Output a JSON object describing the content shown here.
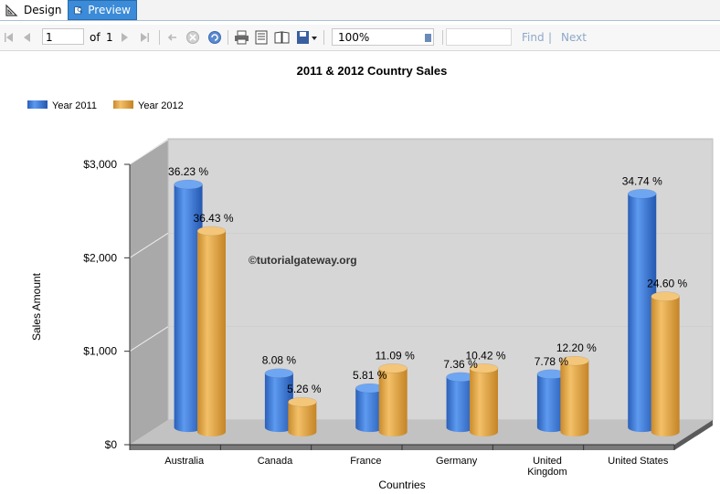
{
  "tabs": {
    "design": "Design",
    "preview": "Preview"
  },
  "toolbar": {
    "page_current": "1",
    "page_of": "of",
    "page_total": "1",
    "zoom": "100%",
    "find": "Find",
    "separator": "|",
    "next": "Next"
  },
  "chart_data": {
    "type": "bar",
    "title": "2011 & 2012 Country Sales",
    "xlabel": "Countries",
    "ylabel": "Sales Amount",
    "ylim": [
      0,
      3000
    ],
    "yticks": [
      "$0",
      "$1,000",
      "$2,000",
      "$3,000"
    ],
    "yticks_values": [
      0,
      1000,
      2000,
      3000
    ],
    "categories": [
      "Australia",
      "Canada",
      "France",
      "Germany",
      "United Kingdom",
      "United States"
    ],
    "category_lines": [
      [
        "Australia"
      ],
      [
        "Canada"
      ],
      [
        "France"
      ],
      [
        "Germany"
      ],
      [
        "United",
        "Kingdom"
      ],
      [
        "United States"
      ]
    ],
    "series": [
      {
        "name": "Year 2011",
        "color": "#3a78d8",
        "values": [
          2600,
          580,
          420,
          540,
          570,
          2500
        ],
        "labels": [
          "36.23 %",
          "8.08 %",
          "5.81 %",
          "7.36 %",
          "7.78 %",
          "34.74 %"
        ]
      },
      {
        "name": "Year 2012",
        "color": "#e6a64a",
        "values": [
          2150,
          320,
          680,
          680,
          760,
          1450
        ],
        "labels": [
          "36.43 %",
          "5.26 %",
          "11.09 %",
          "10.42 %",
          "12.20 %",
          "24.60 %"
        ]
      }
    ],
    "legend_position": "top-left",
    "grid": true,
    "watermark": "©tutorialgateway.org"
  }
}
